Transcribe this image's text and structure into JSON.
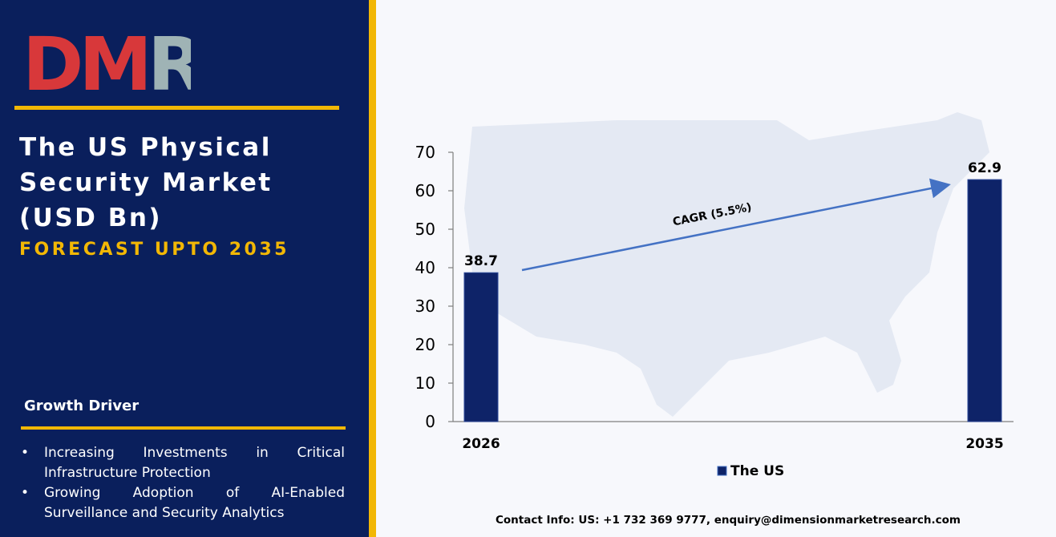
{
  "brand": {
    "logo_text": "DMR",
    "logo_colors": {
      "D": "#d8383a",
      "M": "#d8383a",
      "R": "#9fb3b5"
    }
  },
  "title": "The US Physical Security Market (USD Bn)",
  "subtitle": "FORECAST UPTO 2035",
  "growth_driver": {
    "heading": "Growth Driver",
    "items": [
      "Increasing Investments in Critical Infrastructure Protection",
      "Growing Adoption of AI-Enabled Surveillance and Security Analytics"
    ]
  },
  "contact": "Contact Info: US: +1 732 369 9777, enquiry@dimensionmarketresearch.com",
  "colors": {
    "navy": "#0a1f5c",
    "gold": "#f2b705",
    "bar": "#0e2368",
    "arrow": "#4472c4"
  },
  "chart_data": {
    "type": "bar",
    "categories": [
      "2026",
      "2035"
    ],
    "series": [
      {
        "name": "The US",
        "values": [
          38.7,
          62.9
        ]
      }
    ],
    "data_labels": [
      "38.7",
      "62.9"
    ],
    "ylim": [
      0,
      70
    ],
    "yticks": [
      0,
      10,
      20,
      30,
      40,
      50,
      60,
      70
    ],
    "annotation": "CAGR (5.5%)",
    "legend": "bottom-center",
    "grid": false
  }
}
